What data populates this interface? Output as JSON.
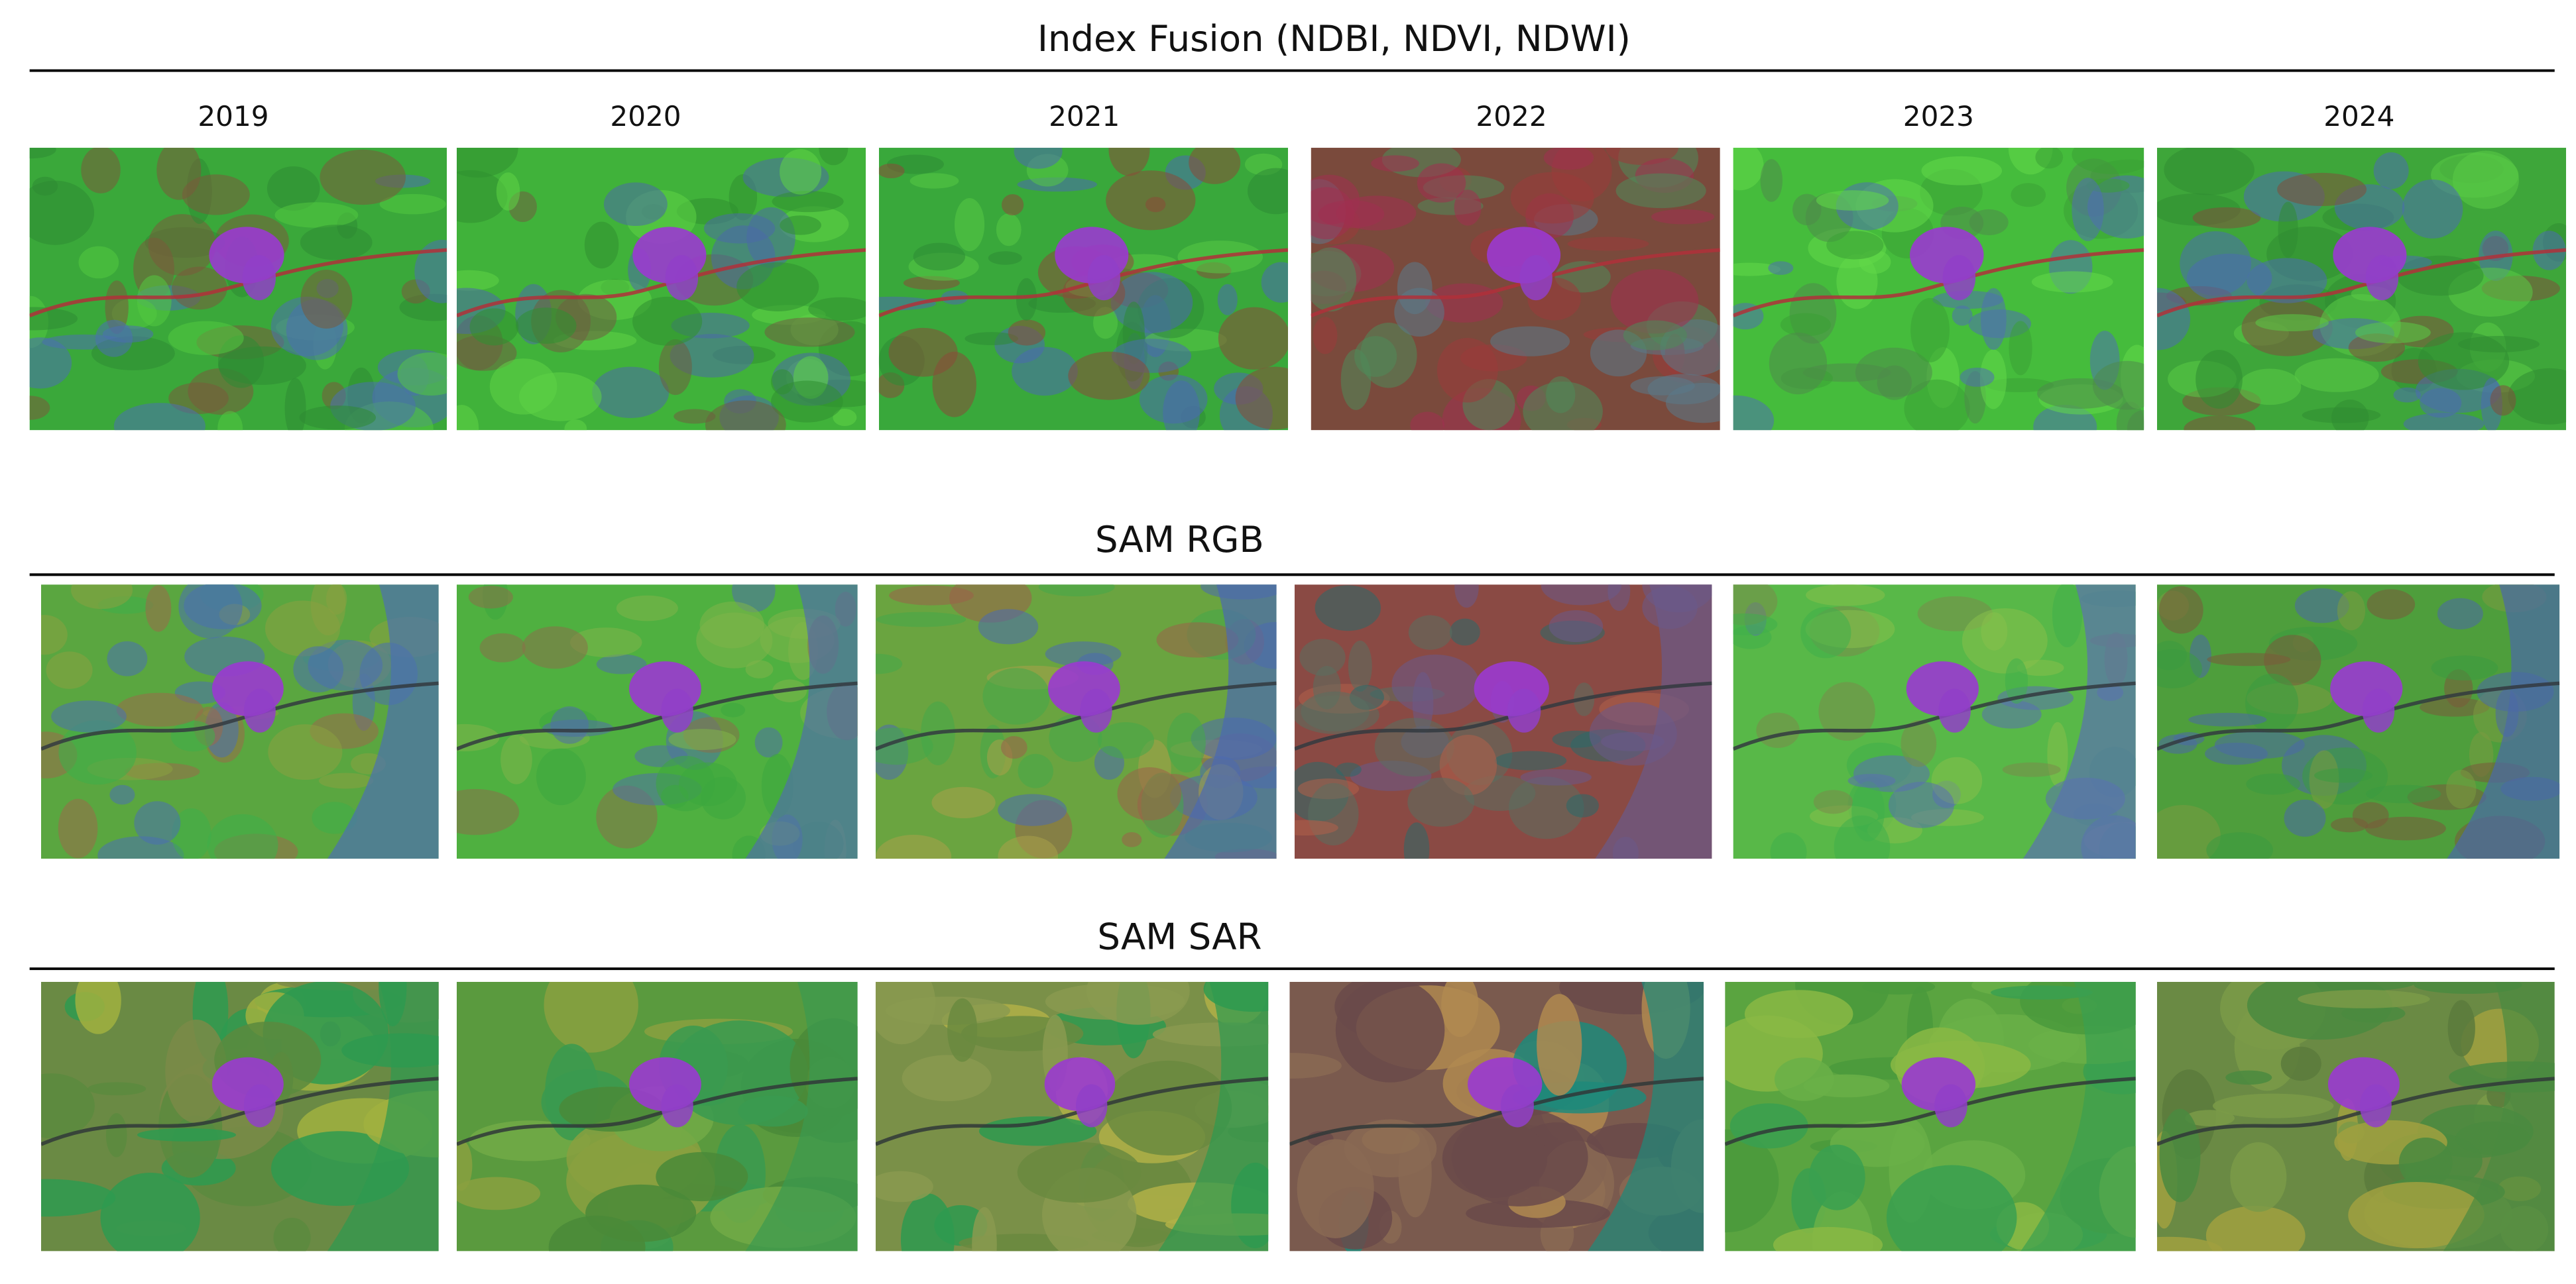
{
  "figure": {
    "sections": [
      {
        "title": "Index Fusion (NDBI, NDVI, NDWI)"
      },
      {
        "title": "SAM RGB"
      },
      {
        "title": "SAM SAR"
      }
    ],
    "years": [
      "2019",
      "2020",
      "2021",
      "2022",
      "2023",
      "2024"
    ]
  }
}
